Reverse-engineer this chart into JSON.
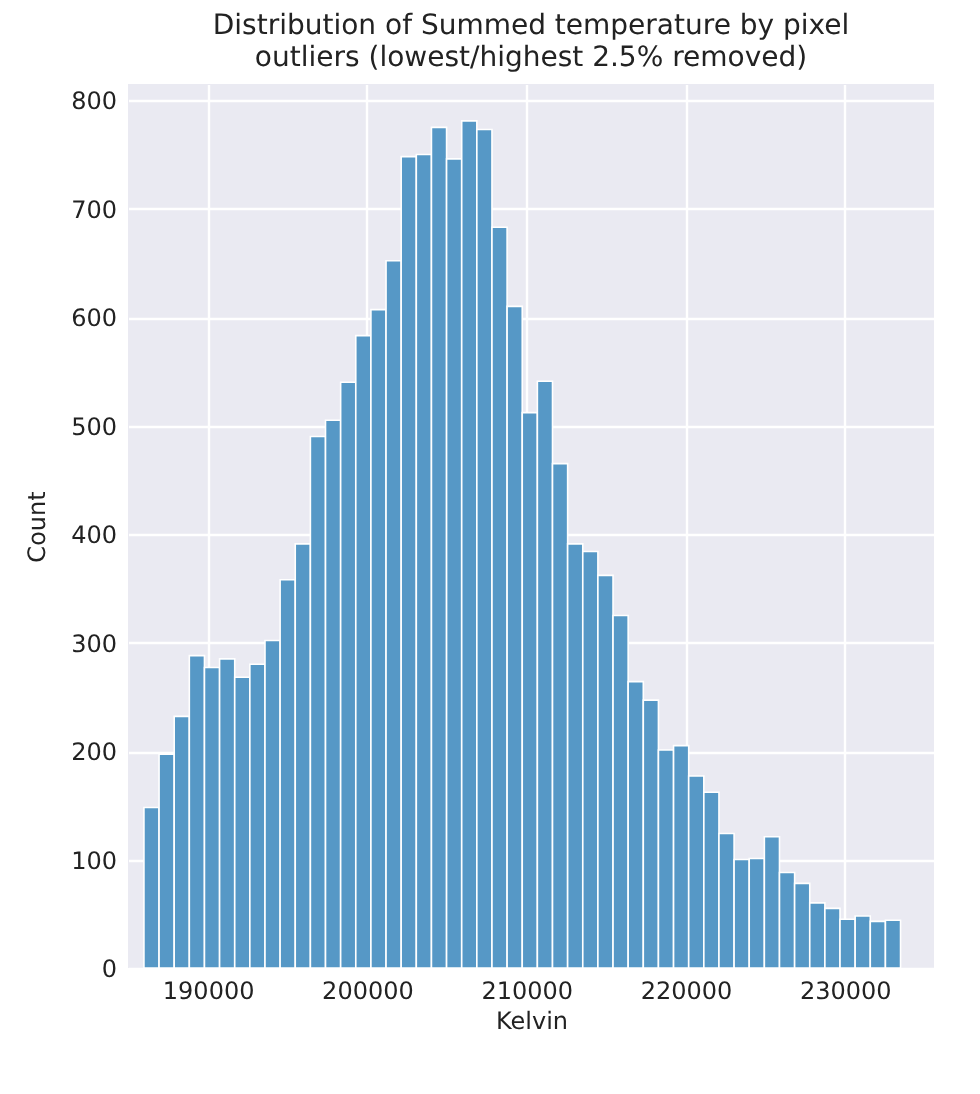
{
  "chart_data": {
    "type": "histogram",
    "title": "Distribution of Summed temperature by pixel\n outliers (lowest/highest 2.5% removed)",
    "xlabel": "Kelvin",
    "ylabel": "Count",
    "color": "#5698c6",
    "bins": [
      186000,
      186950,
      187900,
      188850,
      189800,
      190750,
      191700,
      192650,
      193600,
      194550,
      195500,
      196450,
      197400,
      198350,
      199300,
      200250,
      201200,
      202150,
      203100,
      204050,
      205000,
      205950,
      206900,
      207850,
      208800,
      209750,
      210700,
      211650,
      212600,
      213550,
      214500,
      215450,
      216400,
      217350,
      218300,
      219250,
      220200,
      221150,
      222100,
      223050,
      224000,
      224950,
      225900,
      226850,
      227800,
      228750,
      229700,
      230650,
      231600,
      232550,
      233500
    ],
    "values": [
      148,
      197,
      232,
      288,
      277,
      285,
      268,
      280,
      302,
      358,
      391,
      490,
      505,
      540,
      583,
      607,
      652,
      748,
      750,
      775,
      746,
      781,
      773,
      683,
      610,
      512,
      541,
      465,
      391,
      384,
      362,
      325,
      264,
      247,
      201,
      205,
      177,
      162,
      124,
      100,
      101,
      121,
      88,
      78,
      60,
      55,
      45,
      48,
      43,
      44
    ],
    "xlim": [
      185000,
      235600
    ],
    "xticks": [
      190000,
      200000,
      210000,
      220000,
      230000
    ],
    "ylim": [
      0,
      815
    ],
    "yticks": [
      0,
      100,
      200,
      300,
      400,
      500,
      600,
      700,
      800
    ],
    "grid": true
  }
}
